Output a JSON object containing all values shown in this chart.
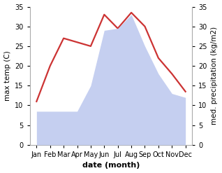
{
  "months": [
    "Jan",
    "Feb",
    "Mar",
    "Apr",
    "May",
    "Jun",
    "Jul",
    "Aug",
    "Sep",
    "Oct",
    "Nov",
    "Dec"
  ],
  "temperature": [
    11,
    20,
    27,
    26,
    25,
    33,
    29.5,
    33.5,
    30,
    22,
    18,
    13.5
  ],
  "precipitation": [
    8.5,
    8.5,
    8.5,
    8.5,
    15,
    29,
    29.5,
    33,
    25,
    18,
    13,
    12
  ],
  "temp_color": "#cc3333",
  "precip_color": "#c5cff0",
  "ylabel_left": "max temp (C)",
  "ylabel_right": "med. precipitation (kg/m2)",
  "xlabel": "date (month)",
  "ylim_left": [
    0,
    35
  ],
  "ylim_right": [
    0,
    35
  ],
  "yticks": [
    0,
    5,
    10,
    15,
    20,
    25,
    30,
    35
  ],
  "spine_color": "#aaaaaa",
  "background_color": "#ffffff",
  "line_width": 1.6,
  "label_fontsize": 7.5,
  "tick_fontsize": 7,
  "xlabel_fontsize": 8
}
